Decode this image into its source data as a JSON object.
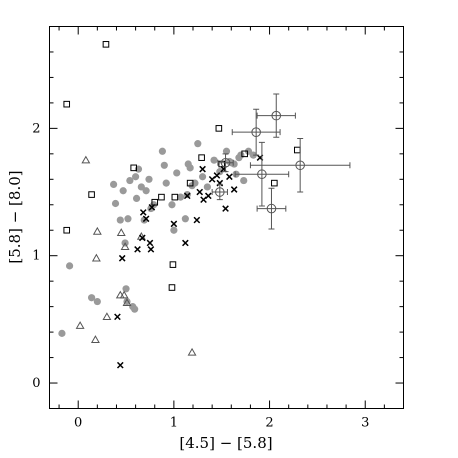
{
  "chart_data": {
    "type": "scatter",
    "xlabel": "[4.5] − [5.8]",
    "ylabel": "[5.8] − [8.0]",
    "xlim": [
      -0.3,
      3.4
    ],
    "ylim": [
      -0.2,
      2.8
    ],
    "xticks": [
      "0",
      "1",
      "2",
      "3"
    ],
    "yticks": [
      "0",
      "1",
      "2"
    ],
    "grid": false,
    "series": [
      {
        "marker": "filled-circle",
        "color": "#9a9a9a",
        "points": [
          [
            -0.17,
            0.39
          ],
          [
            -0.09,
            0.92
          ],
          [
            0.14,
            0.67
          ],
          [
            0.2,
            0.64
          ],
          [
            0.37,
            1.56
          ],
          [
            0.39,
            1.41
          ],
          [
            0.44,
            1.28
          ],
          [
            0.47,
            1.51
          ],
          [
            0.49,
            1.1
          ],
          [
            0.5,
            0.74
          ],
          [
            0.51,
            0.64
          ],
          [
            0.52,
            1.29
          ],
          [
            0.54,
            1.59
          ],
          [
            0.57,
            0.6
          ],
          [
            0.59,
            0.58
          ],
          [
            0.6,
            1.62
          ],
          [
            0.61,
            1.45
          ],
          [
            0.63,
            1.68
          ],
          [
            0.66,
            1.54
          ],
          [
            0.69,
            1.28
          ],
          [
            0.71,
            1.51
          ],
          [
            0.74,
            1.6
          ],
          [
            0.76,
            1.37
          ],
          [
            0.79,
            1.4
          ],
          [
            0.88,
            1.82
          ],
          [
            0.9,
            1.71
          ],
          [
            0.92,
            1.57
          ],
          [
            0.98,
            1.4
          ],
          [
            1.0,
            1.2
          ],
          [
            1.03,
            1.65
          ],
          [
            1.07,
            1.46
          ],
          [
            1.12,
            1.29
          ],
          [
            1.14,
            1.48
          ],
          [
            1.15,
            1.72
          ],
          [
            1.17,
            1.69
          ],
          [
            1.19,
            1.55
          ],
          [
            1.22,
            1.57
          ],
          [
            1.25,
            1.88
          ],
          [
            1.3,
            1.62
          ],
          [
            1.35,
            1.54
          ],
          [
            1.42,
            1.75
          ],
          [
            1.48,
            1.66
          ],
          [
            1.55,
            1.82
          ],
          [
            1.58,
            1.74
          ],
          [
            1.6,
            1.73
          ],
          [
            1.63,
            1.72
          ],
          [
            1.65,
            1.64
          ],
          [
            1.68,
            1.77
          ],
          [
            1.7,
            1.79
          ],
          [
            1.73,
            1.59
          ],
          [
            1.78,
            1.82
          ],
          [
            1.83,
            1.79
          ]
        ]
      },
      {
        "marker": "open-square",
        "color": "#000000",
        "points": [
          [
            -0.12,
            2.19
          ],
          [
            -0.12,
            1.2
          ],
          [
            0.14,
            1.48
          ],
          [
            0.29,
            2.66
          ],
          [
            0.58,
            1.69
          ],
          [
            0.8,
            1.42
          ],
          [
            0.87,
            1.46
          ],
          [
            0.98,
            0.75
          ],
          [
            0.99,
            0.93
          ],
          [
            1.01,
            1.46
          ],
          [
            1.17,
            1.57
          ],
          [
            1.29,
            1.77
          ],
          [
            1.47,
            2.0
          ],
          [
            1.5,
            1.72
          ],
          [
            1.74,
            1.8
          ],
          [
            2.05,
            1.57
          ],
          [
            2.29,
            1.83
          ]
        ]
      },
      {
        "marker": "open-triangle",
        "color": "#555555",
        "points": [
          [
            0.02,
            0.45
          ],
          [
            0.08,
            1.75
          ],
          [
            0.18,
            0.34
          ],
          [
            0.19,
            0.98
          ],
          [
            0.2,
            1.19
          ],
          [
            0.3,
            0.52
          ],
          [
            0.44,
            0.69
          ],
          [
            0.45,
            1.18
          ],
          [
            0.48,
            0.69
          ],
          [
            0.49,
            1.07
          ],
          [
            0.51,
            0.63
          ],
          [
            0.66,
            1.15
          ],
          [
            1.19,
            0.24
          ]
        ]
      },
      {
        "marker": "cross",
        "color": "#000000",
        "points": [
          [
            0.41,
            0.52
          ],
          [
            0.44,
            0.14
          ],
          [
            0.46,
            0.98
          ],
          [
            0.62,
            1.05
          ],
          [
            0.67,
            1.14
          ],
          [
            0.68,
            1.34
          ],
          [
            0.71,
            1.29
          ],
          [
            0.75,
            1.1
          ],
          [
            0.76,
            1.05
          ],
          [
            0.77,
            1.38
          ],
          [
            1.0,
            1.25
          ],
          [
            1.12,
            1.1
          ],
          [
            1.14,
            1.47
          ],
          [
            1.24,
            1.28
          ],
          [
            1.27,
            1.5
          ],
          [
            1.3,
            1.68
          ],
          [
            1.31,
            1.44
          ],
          [
            1.36,
            1.47
          ],
          [
            1.4,
            1.6
          ],
          [
            1.45,
            1.63
          ],
          [
            1.48,
            1.57
          ],
          [
            1.52,
            1.68
          ],
          [
            1.54,
            1.37
          ],
          [
            1.58,
            1.62
          ],
          [
            1.63,
            1.52
          ],
          [
            1.9,
            1.77
          ]
        ]
      },
      {
        "marker": "open-circle-errorbar",
        "color": "#555555",
        "points": [
          {
            "x": 1.48,
            "y": 1.5,
            "xerr": 0.08,
            "yerr": 0.06
          },
          {
            "x": 1.54,
            "y": 1.73,
            "xerr": 0.08,
            "yerr": 0.07
          },
          {
            "x": 1.86,
            "y": 1.97,
            "xerr": 0.25,
            "yerr": 0.18
          },
          {
            "x": 1.92,
            "y": 1.64,
            "xerr": 0.28,
            "yerr": 0.25
          },
          {
            "x": 2.02,
            "y": 1.37,
            "xerr": 0.15,
            "yerr": 0.16
          },
          {
            "x": 2.07,
            "y": 2.1,
            "xerr": 0.2,
            "yerr": 0.17
          },
          {
            "x": 2.32,
            "y": 1.71,
            "xerr": 0.52,
            "yerr": 0.21
          }
        ]
      }
    ]
  }
}
